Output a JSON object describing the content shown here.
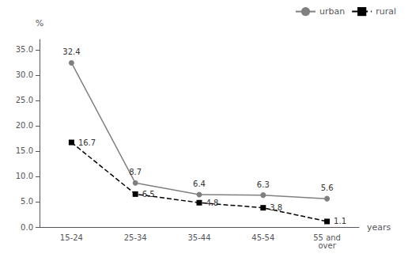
{
  "chart_data": {
    "type": "line",
    "categories": [
      "15-24",
      "25-34",
      "35-44",
      "45-54",
      "55 and\nover"
    ],
    "series": [
      {
        "name": "urban",
        "color": "#808080",
        "marker": "circle",
        "line_style": "solid",
        "values": [
          32.4,
          8.7,
          6.4,
          6.3,
          5.6
        ]
      },
      {
        "name": "rural",
        "color": "#000000",
        "marker": "square",
        "line_style": "dashed",
        "values": [
          16.7,
          6.5,
          4.8,
          3.8,
          1.1
        ]
      }
    ],
    "ylabel": "%",
    "xlabel": "years",
    "ylim": [
      0,
      37
    ],
    "yticks": [
      {
        "value": 0,
        "label": "0.0"
      },
      {
        "value": 5,
        "label": "5.0"
      },
      {
        "value": 10,
        "label": "10.0"
      },
      {
        "value": 15,
        "label": "15.0"
      },
      {
        "value": 20,
        "label": "20.0"
      },
      {
        "value": 25,
        "label": "25.0"
      },
      {
        "value": 30,
        "label": "30.0"
      },
      {
        "value": 35,
        "label": "35.0"
      }
    ],
    "data_labels": true,
    "grid": false,
    "legend": "upper right"
  }
}
